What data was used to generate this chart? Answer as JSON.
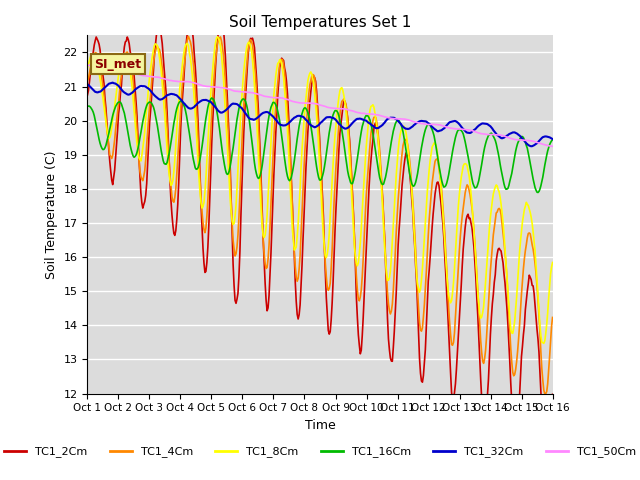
{
  "title": "Soil Temperatures Set 1",
  "xlabel": "Time",
  "ylabel": "Soil Temperature (C)",
  "ylim": [
    12.0,
    22.5
  ],
  "yticks": [
    12.0,
    13.0,
    14.0,
    15.0,
    16.0,
    17.0,
    18.0,
    19.0,
    20.0,
    21.0,
    22.0
  ],
  "bg_color": "#dcdcdc",
  "annotation_text": "SI_met",
  "annotation_bg": "#f5f5a0",
  "annotation_border": "#8b6914",
  "series": {
    "TC1_2Cm": {
      "color": "#cc0000",
      "lw": 1.2
    },
    "TC1_4Cm": {
      "color": "#ff8800",
      "lw": 1.2
    },
    "TC1_8Cm": {
      "color": "#ffff00",
      "lw": 1.2
    },
    "TC1_16Cm": {
      "color": "#00bb00",
      "lw": 1.2
    },
    "TC1_32Cm": {
      "color": "#0000cc",
      "lw": 1.5
    },
    "TC1_50Cm": {
      "color": "#ff88ff",
      "lw": 1.2
    }
  },
  "x_labels": [
    "Oct 1",
    "Oct 2",
    "Oct 3",
    "Oct 4",
    "Oct 5",
    "Oct 6",
    "Oct 7",
    "Oct 8",
    "Oct 9",
    "Oct 10",
    "Oct 11",
    "Oct 12",
    "Oct 13",
    "Oct 14",
    "Oct 15",
    "Oct 16"
  ],
  "n_points": 480,
  "grid_color": "#ffffff",
  "grid_lw": 1.0
}
